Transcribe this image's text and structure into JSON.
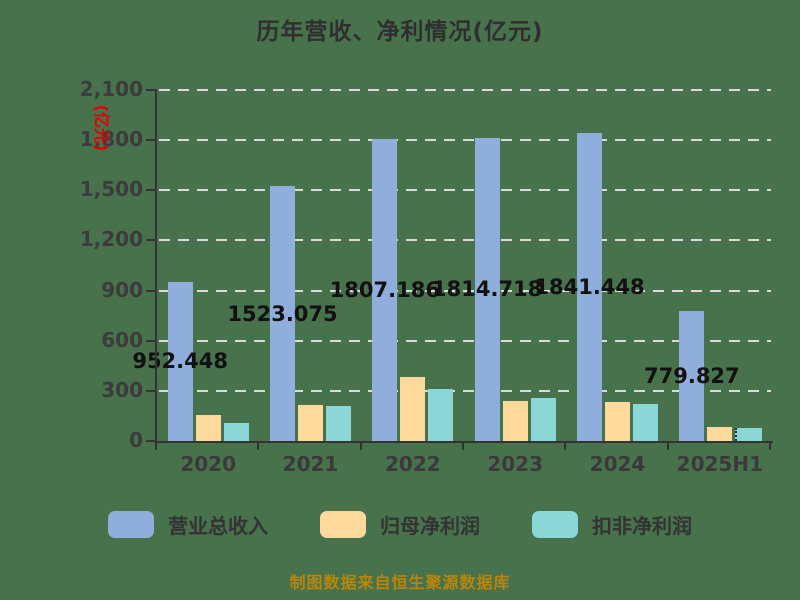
{
  "title": "历年营收、净利情况(亿元)",
  "footer": "制图数据来自恒生聚源数据库",
  "y_axis": {
    "unit_label": "(亿元)",
    "unit_label_color": "#e60000",
    "ticks": [
      "0",
      "300",
      "600",
      "900",
      "1,200",
      "1,500",
      "1,800",
      "2,100"
    ],
    "tick_values": [
      0,
      300,
      600,
      900,
      1200,
      1500,
      1800,
      2100
    ]
  },
  "colors": {
    "background": "#47724C",
    "revenue_bar": "#8FAEDC",
    "net_profit_bar": "#FDD99B",
    "deducted_profit_bar": "#8BD6D6",
    "axis": "#333333",
    "gridline": "#DADADA",
    "value_label": "#111111",
    "footer_text": "#B8860B"
  },
  "chart_data": {
    "type": "bar",
    "categories": [
      "2020",
      "2021",
      "2022",
      "2023",
      "2024",
      "2025H1"
    ],
    "series": [
      {
        "name": "营业总收入",
        "color_key": "revenue_bar",
        "values": [
          952.448,
          1523.075,
          1807.186,
          1814.718,
          1841.448,
          779.827
        ],
        "data_labels": [
          "952.448",
          "1523.075",
          "1807.186",
          "1814.718",
          "1841.448",
          "779.827"
        ]
      },
      {
        "name": "归母净利润",
        "color_key": "net_profit_bar",
        "values": [
          155,
          215,
          380,
          240,
          235,
          85
        ],
        "values_note": "unlabeled in chart, estimated from bar heights"
      },
      {
        "name": "扣非净利润",
        "color_key": "deducted_profit_bar",
        "values": [
          105,
          210,
          310,
          255,
          220,
          75
        ],
        "values_note": "unlabeled in chart, estimated from bar heights"
      }
    ],
    "title": "历年营收、净利情况(亿元)",
    "xlabel": "",
    "ylabel": "(亿元)",
    "ylim": [
      0,
      2100
    ],
    "grid": "horizontal dashed",
    "legend_position": "bottom",
    "value_label_placement": "centered at mid-height of revenue bar"
  },
  "legend": {
    "items": [
      {
        "label": "营业总收入"
      },
      {
        "label": "归母净利润"
      },
      {
        "label": "扣非净利润"
      }
    ]
  }
}
